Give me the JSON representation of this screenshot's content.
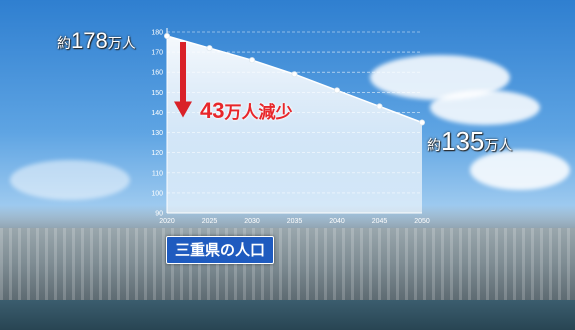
{
  "chart_data": {
    "type": "line",
    "title": "三重県の人口",
    "x": [
      2020,
      2025,
      2030,
      2035,
      2040,
      2045,
      2050
    ],
    "y": [
      178,
      172,
      166,
      159,
      151,
      143,
      135
    ],
    "ylim": [
      90,
      180
    ],
    "yticks": [
      90,
      100,
      110,
      120,
      130,
      140,
      150,
      160,
      170,
      180
    ],
    "xticks": [
      2020,
      2025,
      2030,
      2035,
      2040,
      2045,
      2050
    ],
    "grid": true,
    "annotations": {
      "start": {
        "prefix": "約",
        "value": "178",
        "unit": "万人"
      },
      "end": {
        "prefix": "約",
        "value": "135",
        "unit": "万人"
      },
      "decrease": {
        "value": "43",
        "text": "万人減少"
      }
    },
    "colors": {
      "line": "#ffffff",
      "fill": "#ffffff",
      "arrow": "#d92128",
      "badge": "#1f5bbf"
    }
  }
}
